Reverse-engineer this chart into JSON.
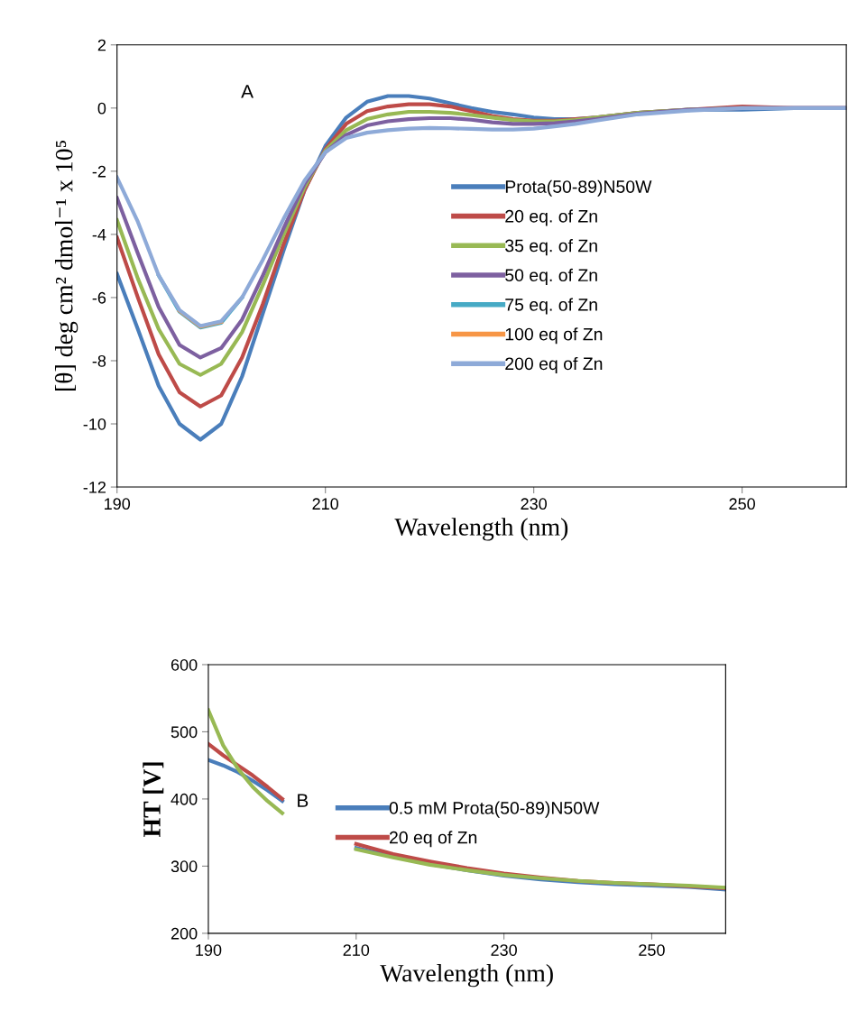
{
  "chart_data": [
    {
      "type": "line",
      "xlabel": "Wavelength (nm)",
      "ylabel": "[θ] deg cm² dmol⁻¹ x 10⁵",
      "annotations": [
        "A"
      ],
      "x": [
        190,
        192,
        194,
        196,
        198,
        200,
        202,
        204,
        206,
        208,
        210,
        212,
        214,
        216,
        218,
        220,
        222,
        224,
        226,
        228,
        230,
        232,
        234,
        236,
        240,
        245,
        250,
        255,
        260
      ],
      "xlim": [
        190,
        260
      ],
      "xticks": [
        190,
        210,
        230,
        250
      ],
      "ylim": [
        -12,
        2
      ],
      "yticks": [
        -12,
        -10,
        -8,
        -6,
        -4,
        -2,
        0,
        2
      ],
      "grid": false,
      "legend": "right",
      "series": [
        {
          "name": "Prota(50-89)N50W",
          "color": "#4a7ebb",
          "values": [
            -5.25,
            -7,
            -8.8,
            -10,
            -10.5,
            -10,
            -8.5,
            -6.5,
            -4.5,
            -2.6,
            -1.2,
            -0.3,
            0.2,
            0.38,
            0.38,
            0.3,
            0.15,
            0,
            -0.12,
            -0.2,
            -0.3,
            -0.35,
            -0.35,
            -0.3,
            -0.15,
            -0.05,
            -0.05,
            0,
            0
          ]
        },
        {
          "name": "20 eq. of Zn",
          "color": "#be4b48",
          "values": [
            -4.1,
            -6,
            -7.8,
            -9,
            -9.45,
            -9.1,
            -7.9,
            -6.2,
            -4.3,
            -2.6,
            -1.3,
            -0.5,
            -0.1,
            0.05,
            0.12,
            0.12,
            0.05,
            -0.1,
            -0.25,
            -0.35,
            -0.4,
            -0.4,
            -0.35,
            -0.3,
            -0.15,
            -0.05,
            0.05,
            0,
            0
          ]
        },
        {
          "name": "35 eq. of Zn",
          "color": "#98b954",
          "values": [
            -3.55,
            -5.4,
            -7,
            -8.1,
            -8.45,
            -8.1,
            -7.1,
            -5.6,
            -4,
            -2.5,
            -1.35,
            -0.7,
            -0.35,
            -0.2,
            -0.12,
            -0.12,
            -0.15,
            -0.22,
            -0.3,
            -0.38,
            -0.42,
            -0.42,
            -0.38,
            -0.3,
            -0.15,
            -0.05,
            0,
            null,
            null
          ]
        },
        {
          "name": "50 eq. of Zn",
          "color": "#7d60a0",
          "values": [
            -2.85,
            -4.6,
            -6.3,
            -7.5,
            -7.9,
            -7.6,
            -6.7,
            -5.3,
            -3.8,
            -2.4,
            -1.4,
            -0.85,
            -0.55,
            -0.42,
            -0.35,
            -0.32,
            -0.32,
            -0.37,
            -0.45,
            -0.5,
            -0.5,
            -0.48,
            -0.42,
            -0.35,
            -0.18,
            -0.05,
            0,
            0,
            0
          ]
        },
        {
          "name": "75 eq. of Zn",
          "color": "#46aac5",
          "values": [
            null,
            null,
            -5.3,
            -6.45,
            -6.95,
            -6.8,
            -6,
            null,
            null,
            null,
            null,
            null,
            null,
            null,
            null,
            null,
            null,
            null,
            null,
            null,
            null,
            null,
            null,
            null,
            null,
            null,
            null,
            null,
            null
          ]
        },
        {
          "name": "100 eq of Zn",
          "color": "#f79646",
          "values": [
            null,
            null,
            null,
            -6.42,
            -6.92,
            -6.77,
            null,
            null,
            null,
            null,
            null,
            null,
            null,
            null,
            null,
            null,
            null,
            null,
            null,
            null,
            null,
            null,
            null,
            null,
            null,
            null,
            null,
            null,
            null
          ]
        },
        {
          "name": "200 eq of Zn",
          "color": "#8eaad8",
          "values": [
            -2.2,
            -3.6,
            -5.3,
            -6.4,
            -6.9,
            -6.75,
            -6,
            -4.8,
            -3.5,
            -2.3,
            -1.4,
            -0.95,
            -0.78,
            -0.7,
            -0.65,
            -0.63,
            -0.64,
            -0.66,
            -0.68,
            -0.68,
            -0.65,
            -0.58,
            -0.5,
            -0.4,
            -0.2,
            -0.08,
            0,
            0,
            0
          ]
        }
      ]
    },
    {
      "type": "line",
      "xlabel": "Wavelength (nm)",
      "ylabel": "HT [V]",
      "annotations": [
        "B"
      ],
      "x": [
        190,
        192,
        194,
        196,
        198,
        200,
        205,
        210,
        215,
        220,
        225,
        230,
        235,
        240,
        245,
        250,
        255,
        260
      ],
      "xlim": [
        190,
        260
      ],
      "xticks": [
        190,
        210,
        230,
        250
      ],
      "ylim": [
        200,
        600
      ],
      "yticks": [
        200,
        300,
        400,
        500,
        600
      ],
      "grid": false,
      "legend": "right",
      "series": [
        {
          "name": "0.5 mM Prota(50-89)N50W",
          "color": "#4a7ebb",
          "values": [
            458,
            450,
            440,
            427,
            413,
            397,
            null,
            327,
            314,
            303,
            294,
            286,
            280,
            276,
            273,
            271,
            269,
            265
          ]
        },
        {
          "name": "20 eq of Zn",
          "color": "#be4b48",
          "values": [
            482,
            465,
            450,
            435,
            418,
            400,
            null,
            333,
            318,
            307,
            297,
            289,
            283,
            278,
            275,
            273,
            270,
            267
          ]
        },
        {
          "color": "#98b954",
          "values": [
            532,
            480,
            445,
            418,
            397,
            379,
            null,
            325,
            313,
            302,
            294,
            287,
            282,
            278,
            275,
            273,
            271,
            268
          ]
        }
      ]
    }
  ]
}
